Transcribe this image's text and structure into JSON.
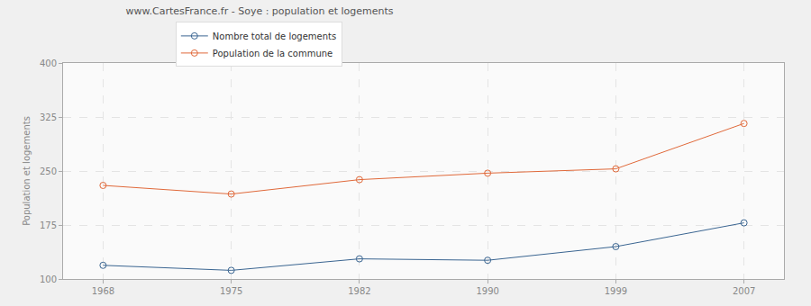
{
  "chart_data": {
    "type": "line",
    "title": "www.CartesFrance.fr - Soye : population et logements",
    "y_label": "Population et logements",
    "categories": [
      "1968",
      "1975",
      "1982",
      "1990",
      "1999",
      "2007"
    ],
    "series": [
      {
        "name": "Nombre total de logements",
        "color": "#3a6591",
        "values": [
          119,
          112,
          128,
          126,
          145,
          178
        ]
      },
      {
        "name": "Population de la commune",
        "color": "#e0693a",
        "values": [
          230,
          218,
          238,
          247,
          253,
          316
        ]
      }
    ],
    "ylim": [
      100,
      400
    ],
    "yticks": [
      100,
      175,
      250,
      325,
      400
    ],
    "grid": true,
    "marker": "circle",
    "legend": "top-left"
  }
}
